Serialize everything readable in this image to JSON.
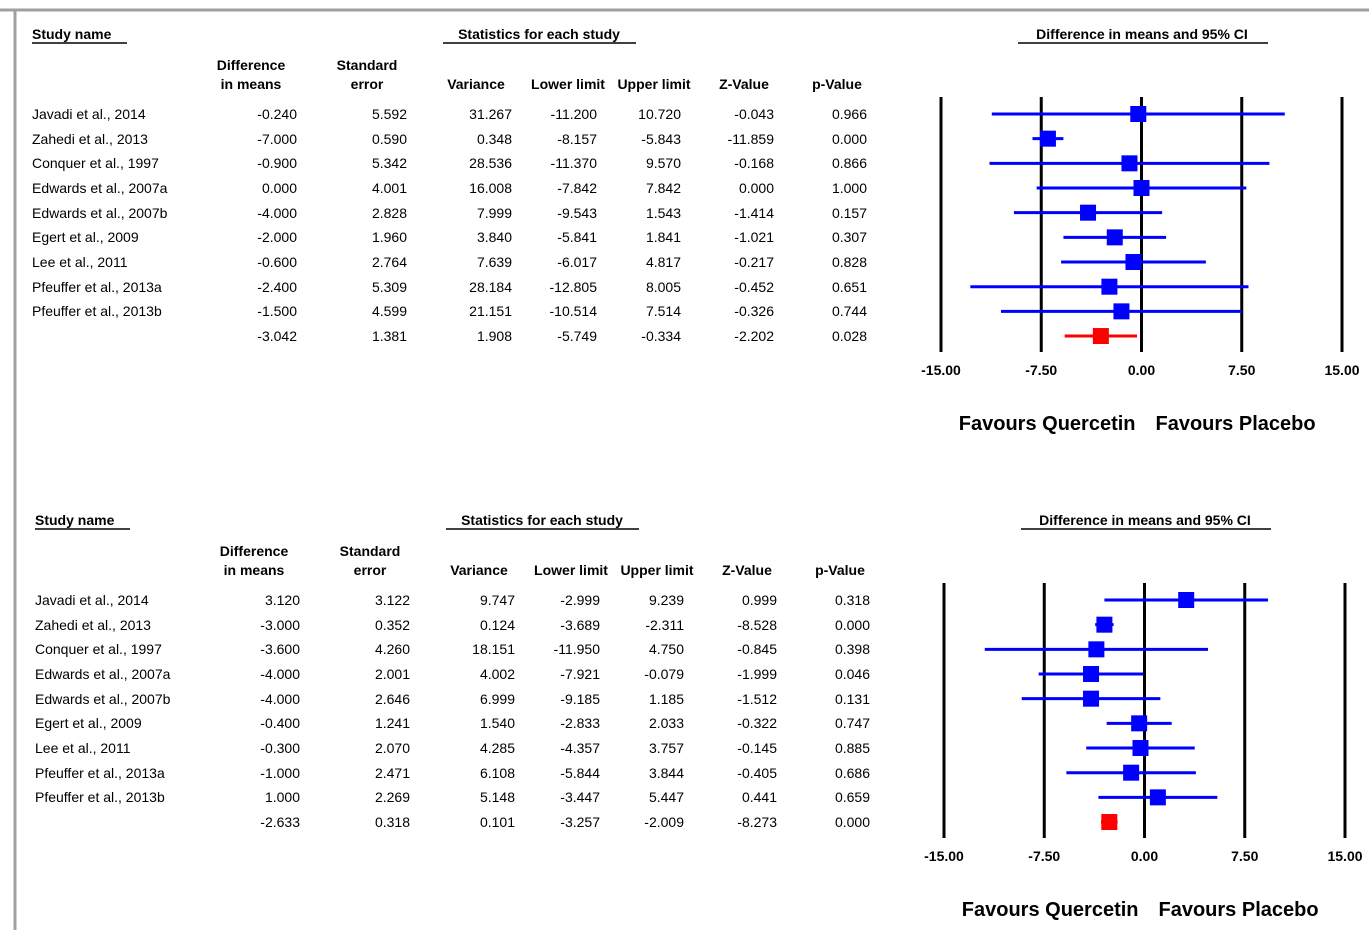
{
  "chart_data": [
    {
      "type": "forest",
      "study_header": "Study name",
      "stats_header": "Statistics for each study",
      "plot_header": "Difference in means and 95% CI",
      "categories": [
        "Javadi et al., 2014",
        "Zahedi et al., 2013",
        "Conquer et al., 1997",
        "Edwards et al., 2007a",
        "Edwards et al., 2007b",
        "Egert et al., 2009",
        "Lee et al., 2011",
        "Pfeuffer et al., 2013a",
        "Pfeuffer et al., 2013b",
        null
      ],
      "series": [
        {
          "name": "Difference in means",
          "values": [
            -0.24,
            -7.0,
            -0.9,
            0.0,
            -4.0,
            -2.0,
            -0.6,
            -2.4,
            -1.5,
            -3.042
          ],
          "value_labels": [
            "-0.240",
            "-7.000",
            "-0.900",
            "0.000",
            "-4.000",
            "-2.000",
            "-0.600",
            "-2.400",
            "-1.500",
            "-3.042"
          ]
        },
        {
          "name": "Standard error",
          "values": [
            5.592,
            0.59,
            5.342,
            4.001,
            2.828,
            1.96,
            2.764,
            5.309,
            4.599,
            1.381
          ],
          "value_labels": [
            "5.592",
            "0.590",
            "5.342",
            "4.001",
            "2.828",
            "1.960",
            "2.764",
            "5.309",
            "4.599",
            "1.381"
          ]
        },
        {
          "name": "Variance",
          "values": [
            31.267,
            0.348,
            28.536,
            16.008,
            7.999,
            3.84,
            7.639,
            28.184,
            21.151,
            1.908
          ],
          "value_labels": [
            "31.267",
            "0.348",
            "28.536",
            "16.008",
            "7.999",
            "3.840",
            "7.639",
            "28.184",
            "21.151",
            "1.908"
          ]
        },
        {
          "name": "Lower limit",
          "values": [
            -11.2,
            -8.157,
            -11.37,
            -7.842,
            -9.543,
            -5.841,
            -6.017,
            -12.805,
            -10.514,
            -5.749
          ],
          "value_labels": [
            "-11.200",
            "-8.157",
            "-11.370",
            "-7.842",
            "-9.543",
            "-5.841",
            "-6.017",
            "-12.805",
            "-10.514",
            "-5.749"
          ]
        },
        {
          "name": "Upper limit",
          "values": [
            10.72,
            -5.843,
            9.57,
            7.842,
            1.543,
            1.841,
            4.817,
            8.005,
            7.514,
            -0.334
          ],
          "value_labels": [
            "10.720",
            "-5.843",
            "9.570",
            "7.842",
            "1.543",
            "1.841",
            "4.817",
            "8.005",
            "7.514",
            "-0.334"
          ]
        },
        {
          "name": "Z-Value",
          "values": [
            -0.043,
            -11.859,
            -0.168,
            0.0,
            -1.414,
            -1.021,
            -0.217,
            -0.452,
            -0.326,
            -2.202
          ],
          "value_labels": [
            "-0.043",
            "-11.859",
            "-0.168",
            "0.000",
            "-1.414",
            "-1.021",
            "-0.217",
            "-0.452",
            "-0.326",
            "-2.202"
          ]
        },
        {
          "name": "p-Value",
          "values": [
            0.966,
            0.0,
            0.866,
            1.0,
            0.157,
            0.307,
            0.828,
            0.651,
            0.744,
            0.028
          ],
          "value_labels": [
            "0.966",
            "0.000",
            "0.866",
            "1.000",
            "0.157",
            "0.307",
            "0.828",
            "0.651",
            "0.744",
            "0.028"
          ]
        }
      ],
      "color": "#0000ff",
      "summary_color": "#ff0000",
      "xlim": [
        -15,
        15
      ],
      "xticks": [
        {
          "value": -15,
          "label": "-15.00"
        },
        {
          "value": -7.5,
          "label": "-7.50"
        },
        {
          "value": 0,
          "label": "0.00"
        },
        {
          "value": 7.5,
          "label": "7.50"
        },
        {
          "value": 15,
          "label": "15.00"
        }
      ],
      "grid": true,
      "left_label": "Favours Quercetin",
      "right_label": "Favours Placebo"
    },
    {
      "type": "forest",
      "study_header": "Study name",
      "stats_header": "Statistics for each study",
      "plot_header": "Difference in means and 95% CI",
      "categories": [
        "Javadi et al., 2014",
        "Zahedi et al., 2013",
        "Conquer et al., 1997",
        "Edwards et al., 2007a",
        "Edwards et al., 2007b",
        "Egert et al., 2009",
        "Lee et al., 2011",
        "Pfeuffer et al., 2013a",
        "Pfeuffer et al., 2013b",
        null
      ],
      "series": [
        {
          "name": "Difference in means",
          "values": [
            3.12,
            -3.0,
            -3.6,
            -4.0,
            -4.0,
            -0.4,
            -0.3,
            -1.0,
            1.0,
            -2.633
          ],
          "value_labels": [
            "3.120",
            "-3.000",
            "-3.600",
            "-4.000",
            "-4.000",
            "-0.400",
            "-0.300",
            "-1.000",
            "1.000",
            "-2.633"
          ]
        },
        {
          "name": "Standard error",
          "values": [
            3.122,
            0.352,
            4.26,
            2.001,
            2.646,
            1.241,
            2.07,
            2.471,
            2.269,
            0.318
          ],
          "value_labels": [
            "3.122",
            "0.352",
            "4.260",
            "2.001",
            "2.646",
            "1.241",
            "2.070",
            "2.471",
            "2.269",
            "0.318"
          ]
        },
        {
          "name": "Variance",
          "values": [
            9.747,
            0.124,
            18.151,
            4.002,
            6.999,
            1.54,
            4.285,
            6.108,
            5.148,
            0.101
          ],
          "value_labels": [
            "9.747",
            "0.124",
            "18.151",
            "4.002",
            "6.999",
            "1.540",
            "4.285",
            "6.108",
            "5.148",
            "0.101"
          ]
        },
        {
          "name": "Lower limit",
          "values": [
            -2.999,
            -3.689,
            -11.95,
            -7.921,
            -9.185,
            -2.833,
            -4.357,
            -5.844,
            -3.447,
            -3.257
          ],
          "value_labels": [
            "-2.999",
            "-3.689",
            "-11.950",
            "-7.921",
            "-9.185",
            "-2.833",
            "-4.357",
            "-5.844",
            "-3.447",
            "-3.257"
          ]
        },
        {
          "name": "Upper limit",
          "values": [
            9.239,
            -2.311,
            4.75,
            -0.079,
            1.185,
            2.033,
            3.757,
            3.844,
            5.447,
            -2.009
          ],
          "value_labels": [
            "9.239",
            "-2.311",
            "4.750",
            "-0.079",
            "1.185",
            "2.033",
            "3.757",
            "3.844",
            "5.447",
            "-2.009"
          ]
        },
        {
          "name": "Z-Value",
          "values": [
            0.999,
            -8.528,
            -0.845,
            -1.999,
            -1.512,
            -0.322,
            -0.145,
            -0.405,
            0.441,
            -8.273
          ],
          "value_labels": [
            "0.999",
            "-8.528",
            "-0.845",
            "-1.999",
            "-1.512",
            "-0.322",
            "-0.145",
            "-0.405",
            "0.441",
            "-8.273"
          ]
        },
        {
          "name": "p-Value",
          "values": [
            0.318,
            0.0,
            0.398,
            0.046,
            0.131,
            0.747,
            0.885,
            0.686,
            0.659,
            0.0
          ],
          "value_labels": [
            "0.318",
            "0.000",
            "0.398",
            "0.046",
            "0.131",
            "0.747",
            "0.885",
            "0.686",
            "0.659",
            "0.000"
          ]
        }
      ],
      "color": "#0000ff",
      "summary_color": "#ff0000",
      "xlim": [
        -15,
        15
      ],
      "xticks": [
        {
          "value": -15,
          "label": "-15.00"
        },
        {
          "value": -7.5,
          "label": "-7.50"
        },
        {
          "value": 0,
          "label": "0.00"
        },
        {
          "value": 7.5,
          "label": "7.50"
        },
        {
          "value": 15,
          "label": "15.00"
        }
      ],
      "grid": true,
      "left_label": "Favours Quercetin",
      "right_label": "Favours Placebo"
    }
  ]
}
